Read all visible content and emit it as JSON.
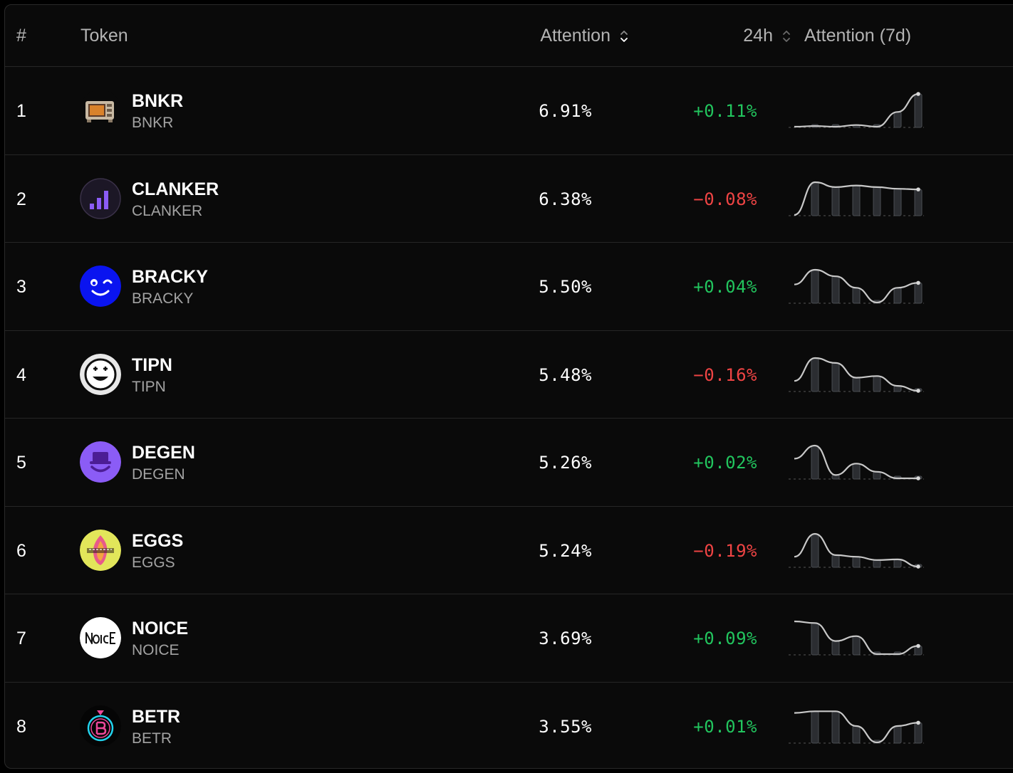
{
  "header": {
    "rank_label": "#",
    "token_label": "Token",
    "attention_label": "Attention",
    "change_label": "24h",
    "trend_label": "Attention (7d)"
  },
  "colors": {
    "positive": "#22c55e",
    "negative": "#ef4444",
    "background": "#0a0a0a"
  },
  "rows": [
    {
      "rank": "1",
      "name": "BNKR",
      "symbol": "BNKR",
      "attention": "6.91%",
      "change": "+0.11%",
      "direction": "up",
      "icon": "bnkr-logo",
      "trend": [
        0.0,
        0.02,
        0.0,
        0.05,
        0.0,
        0.45,
        1.0
      ]
    },
    {
      "rank": "2",
      "name": "CLANKER",
      "symbol": "CLANKER",
      "attention": "6.38%",
      "change": "−0.08%",
      "direction": "down",
      "icon": "clanker-logo",
      "trend": [
        0.0,
        1.0,
        0.85,
        0.9,
        0.85,
        0.8,
        0.78
      ]
    },
    {
      "rank": "3",
      "name": "BRACKY",
      "symbol": "BRACKY",
      "attention": "5.50%",
      "change": "+0.04%",
      "direction": "up",
      "icon": "bracky-logo",
      "trend": [
        0.55,
        1.0,
        0.8,
        0.45,
        0.0,
        0.45,
        0.6
      ]
    },
    {
      "rank": "4",
      "name": "TIPN",
      "symbol": "TIPN",
      "attention": "5.48%",
      "change": "−0.16%",
      "direction": "down",
      "icon": "tipn-logo",
      "trend": [
        0.3,
        1.0,
        0.85,
        0.4,
        0.45,
        0.15,
        0.0
      ]
    },
    {
      "rank": "5",
      "name": "DEGEN",
      "symbol": "DEGEN",
      "attention": "5.26%",
      "change": "+0.02%",
      "direction": "up",
      "icon": "degen-logo",
      "trend": [
        0.6,
        1.0,
        0.1,
        0.45,
        0.2,
        0.0,
        0.0
      ]
    },
    {
      "rank": "6",
      "name": "EGGS",
      "symbol": "EGGS",
      "attention": "5.24%",
      "change": "−0.19%",
      "direction": "down",
      "icon": "eggs-logo",
      "trend": [
        0.3,
        1.0,
        0.35,
        0.3,
        0.2,
        0.22,
        0.0
      ]
    },
    {
      "rank": "7",
      "name": "NOICE",
      "symbol": "NOICE",
      "attention": "3.69%",
      "change": "+0.09%",
      "direction": "up",
      "icon": "noice-logo",
      "trend": [
        1.0,
        0.95,
        0.4,
        0.55,
        0.0,
        0.0,
        0.25
      ]
    },
    {
      "rank": "8",
      "name": "BETR",
      "symbol": "BETR",
      "attention": "3.55%",
      "change": "+0.01%",
      "direction": "up",
      "icon": "betr-logo",
      "trend": [
        0.9,
        0.95,
        0.95,
        0.5,
        0.0,
        0.5,
        0.6
      ]
    }
  ]
}
